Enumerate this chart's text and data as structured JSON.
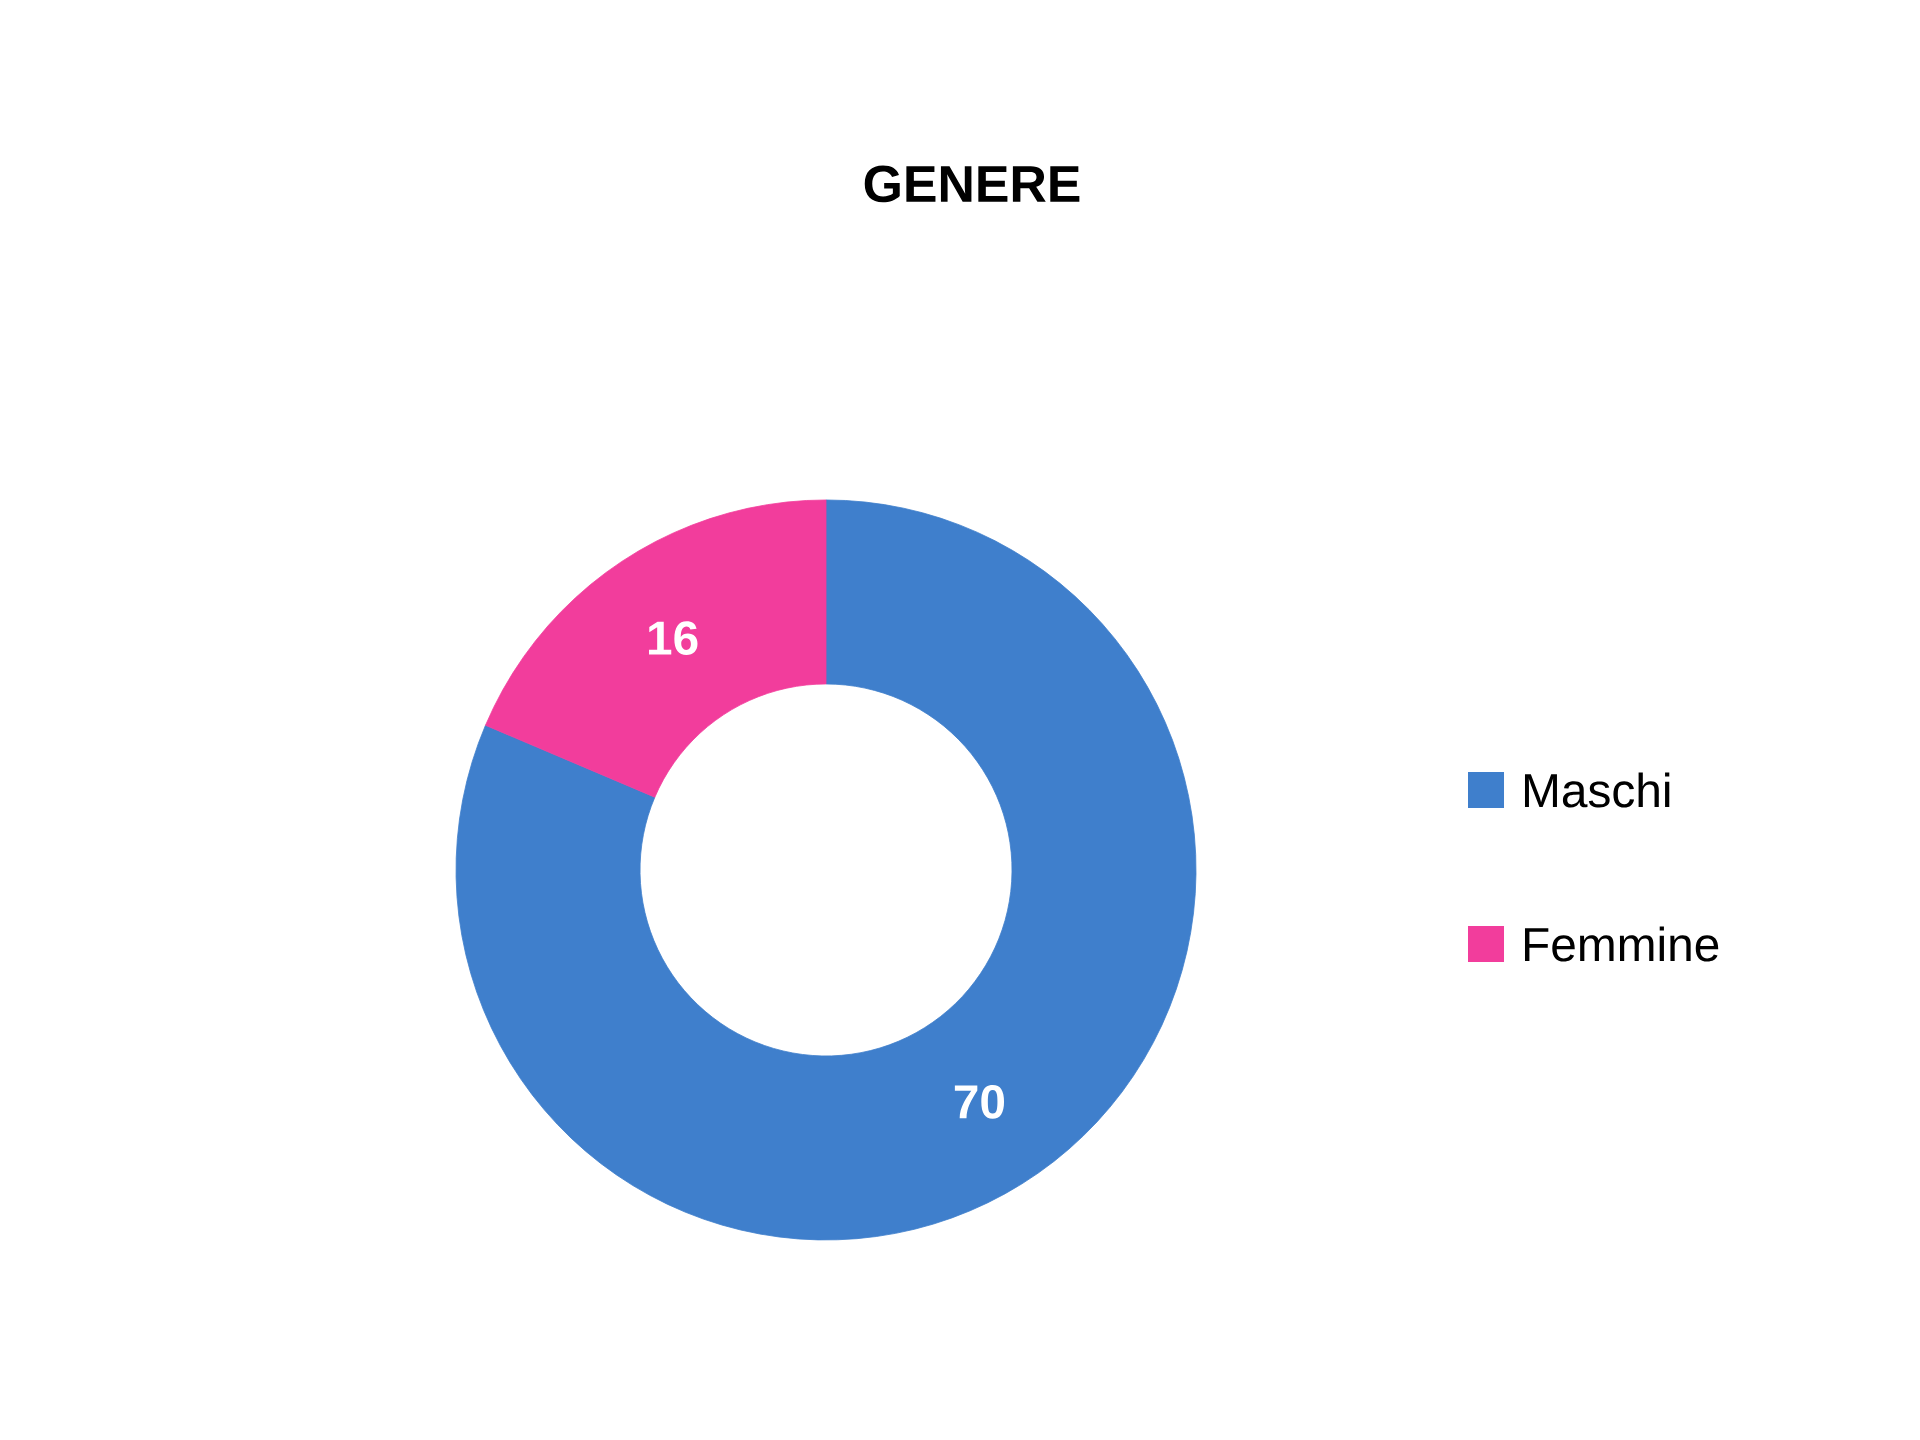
{
  "chart_data": {
    "type": "donut",
    "title": "GENERE",
    "categories": [
      "Maschi",
      "Femmine"
    ],
    "values": [
      70,
      16
    ],
    "colors": [
      "#3f7fcc",
      "#f23d9c"
    ],
    "data_labels": true,
    "legend": "right"
  }
}
